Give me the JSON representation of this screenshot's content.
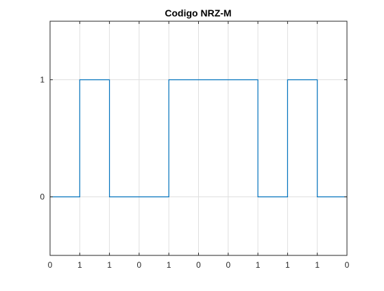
{
  "chart_data": {
    "type": "line",
    "title": "Codigo NRZ-M",
    "xlabel": "",
    "ylabel": "",
    "xlim": [
      0,
      10
    ],
    "ylim": [
      -0.5,
      1.5
    ],
    "x_ticks": [
      0,
      1,
      2,
      3,
      4,
      5,
      6,
      7,
      8,
      9,
      10
    ],
    "x_tick_labels": [
      "0",
      "1",
      "1",
      "0",
      "1",
      "0",
      "0",
      "1",
      "1",
      "1",
      "0"
    ],
    "y_ticks": [
      0,
      1
    ],
    "y_tick_labels": [
      "0",
      "1"
    ],
    "grid": true,
    "legend": "none",
    "series": [
      {
        "line_style": "step",
        "color": "#0072BD",
        "x": [
          0,
          1,
          1,
          2,
          2,
          4,
          4,
          7,
          7,
          8,
          8,
          9,
          9,
          10
        ],
        "y": [
          0,
          0,
          1,
          1,
          0,
          0,
          1,
          1,
          0,
          0,
          1,
          1,
          0,
          0
        ]
      }
    ]
  }
}
